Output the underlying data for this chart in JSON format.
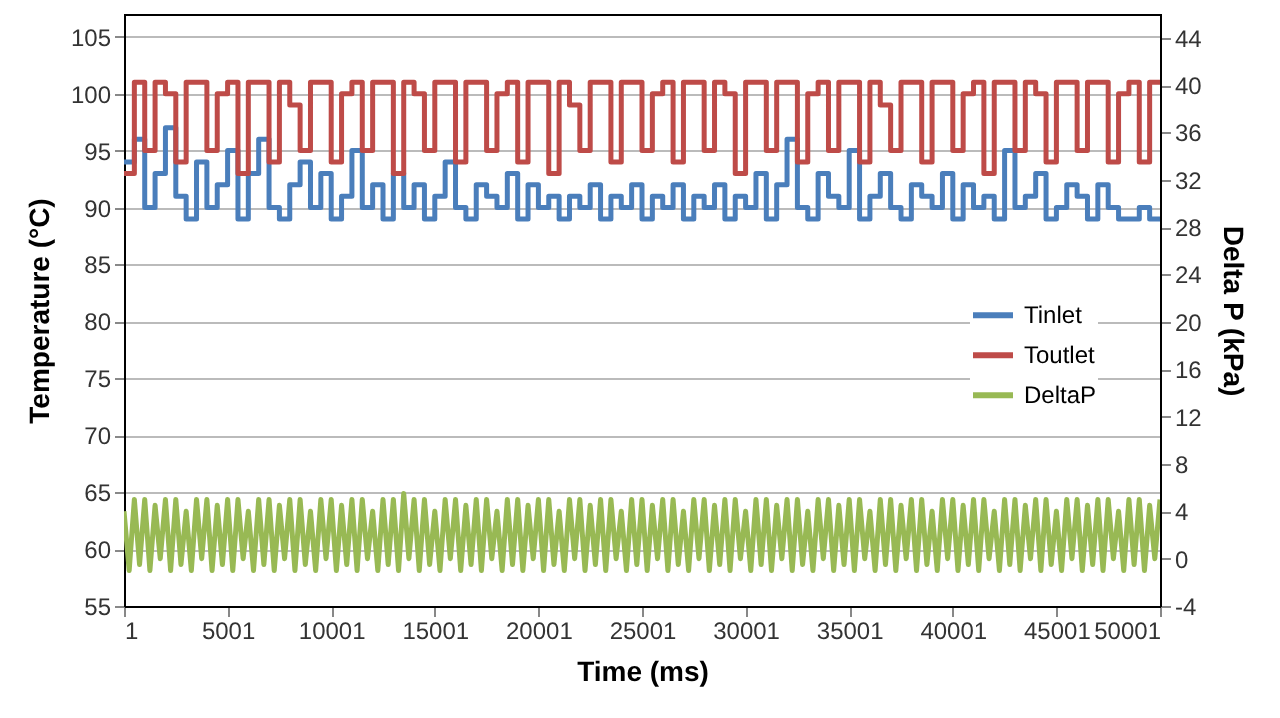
{
  "chart_data": {
    "type": "line",
    "xlabel": "Time (ms)",
    "ylabel": "Temperature (°C)",
    "y2label": "Delta P (kPa)",
    "x": [
      1,
      501,
      1001,
      1501,
      2001,
      2501,
      3001,
      3501,
      4001,
      4501,
      5001,
      5501,
      6001,
      6501,
      7001,
      7501,
      8001,
      8501,
      9001,
      9501,
      10001,
      10501,
      11001,
      11501,
      12001,
      12501,
      13001,
      13501,
      14001,
      14501,
      15001,
      15501,
      16001,
      16501,
      17001,
      17501,
      18001,
      18501,
      19001,
      19501,
      20001,
      20501,
      21001,
      21501,
      22001,
      22501,
      23001,
      23501,
      24001,
      24501,
      25001,
      25501,
      26001,
      26501,
      27001,
      27501,
      28001,
      28501,
      29001,
      29501,
      30001,
      30501,
      31001,
      31501,
      32001,
      32501,
      33001,
      33501,
      34001,
      34501,
      35001,
      35501,
      36001,
      36501,
      37001,
      37501,
      38001,
      38501,
      39001,
      39501,
      40001,
      40501,
      41001,
      41501,
      42001,
      42501,
      43001,
      43501,
      44001,
      44501,
      45001,
      45501,
      46001,
      46501,
      47001,
      47501,
      48001,
      48501,
      49001,
      49501,
      50001
    ],
    "series": [
      {
        "name": "Tinlet",
        "type": "step",
        "color": "#4a7ebb",
        "values": [
          94,
          96,
          90,
          93,
          97,
          91,
          89,
          94,
          90,
          92,
          95,
          89,
          93,
          96,
          90,
          89,
          92,
          94,
          90,
          93,
          89,
          91,
          95,
          90,
          92,
          89,
          93,
          90,
          92,
          89,
          91,
          94,
          90,
          89,
          92,
          91,
          90,
          93,
          89,
          92,
          90,
          91,
          89,
          91,
          90,
          92,
          89,
          91,
          90,
          92,
          89,
          91,
          90,
          92,
          89,
          91,
          90,
          92,
          89,
          91,
          90,
          93,
          89,
          92,
          96,
          90,
          89,
          93,
          91,
          90,
          95,
          89,
          91,
          93,
          90,
          89,
          92,
          91,
          90,
          93,
          89,
          92,
          90,
          91,
          89,
          95,
          90,
          91,
          93,
          89,
          90,
          92,
          91,
          89,
          92,
          90,
          89,
          89,
          90,
          89,
          89
        ]
      },
      {
        "name": "Toutlet",
        "type": "step",
        "color": "#be4b48",
        "values": [
          93,
          101,
          95,
          101,
          100,
          94,
          101,
          101,
          95,
          100,
          101,
          93,
          101,
          101,
          94,
          101,
          99,
          95,
          101,
          101,
          94,
          100,
          101,
          95,
          101,
          101,
          93,
          101,
          100,
          95,
          101,
          101,
          94,
          101,
          101,
          95,
          100,
          101,
          94,
          101,
          101,
          93,
          101,
          99,
          95,
          101,
          101,
          94,
          101,
          101,
          95,
          100,
          101,
          94,
          101,
          101,
          95,
          101,
          100,
          93,
          101,
          101,
          95,
          101,
          101,
          94,
          100,
          101,
          95,
          101,
          101,
          94,
          101,
          99,
          95,
          101,
          101,
          94,
          101,
          101,
          95,
          100,
          101,
          93,
          101,
          101,
          95,
          101,
          100,
          94,
          101,
          101,
          95,
          101,
          101,
          94,
          100,
          101,
          94,
          101,
          101
        ]
      },
      {
        "name": "DeltaP",
        "type": "line",
        "axis": "y2",
        "color": "#98b954",
        "x": [
          1,
          251,
          501,
          751,
          1001,
          1251,
          1501,
          1751,
          2001,
          2251,
          2501,
          2751,
          3001,
          3251,
          3501,
          3751,
          4001,
          4251,
          4501,
          4751,
          5001,
          5251,
          5501,
          5751,
          6001,
          6251,
          6501,
          6751,
          7001,
          7251,
          7501,
          7751,
          8001,
          8251,
          8501,
          8751,
          9001,
          9251,
          9501,
          9751,
          10001,
          10251,
          10501,
          10751,
          11001,
          11251,
          11501,
          11751,
          12001,
          12251,
          12501,
          12751,
          13001,
          13251,
          13501,
          13751,
          14001,
          14251,
          14501,
          14751,
          15001,
          15251,
          15501,
          15751,
          16001,
          16251,
          16501,
          16751,
          17001,
          17251,
          17501,
          17751,
          18001,
          18251,
          18501,
          18751,
          19001,
          19251,
          19501,
          19751,
          20001,
          20251,
          20501,
          20751,
          21001,
          21251,
          21501,
          21751,
          22001,
          22251,
          22501,
          22751,
          23001,
          23251,
          23501,
          23751,
          24001,
          24251,
          24501,
          24751,
          25001,
          25251,
          25501,
          25751,
          26001,
          26251,
          26501,
          26751,
          27001,
          27251,
          27501,
          27751,
          28001,
          28251,
          28501,
          28751,
          29001,
          29251,
          29501,
          29751,
          30001,
          30251,
          30501,
          30751,
          31001,
          31251,
          31501,
          31751,
          32001,
          32251,
          32501,
          32751,
          33001,
          33251,
          33501,
          33751,
          34001,
          34251,
          34501,
          34751,
          35001,
          35251,
          35501,
          35751,
          36001,
          36251,
          36501,
          36751,
          37001,
          37251,
          37501,
          37751,
          38001,
          38251,
          38501,
          38751,
          39001,
          39251,
          39501,
          39751,
          40001,
          40251,
          40501,
          40751,
          41001,
          41251,
          41501,
          41751,
          42001,
          42251,
          42501,
          42751,
          43001,
          43251,
          43501,
          43751,
          44001,
          44251,
          44501,
          44751,
          45001,
          45251,
          45501,
          45751,
          46001,
          46251,
          46501,
          46751,
          47001,
          47251,
          47501,
          47751,
          48001,
          48251,
          48501,
          48751,
          49001,
          49251,
          49501,
          49751,
          50001
        ],
        "values": [
          4,
          -1,
          5,
          -0.5,
          5,
          -1,
          4.5,
          0,
          5,
          -1,
          5,
          -0.5,
          4,
          -1,
          5,
          0,
          5,
          -1,
          4.5,
          -0.5,
          5,
          -1,
          5,
          0,
          4,
          -1,
          5,
          -0.5,
          5,
          -1,
          4.5,
          0,
          5,
          -1,
          5,
          -0.5,
          4,
          -1,
          5,
          0,
          5,
          -1,
          4.5,
          -0.5,
          5,
          -1,
          5,
          0,
          4,
          -1,
          5,
          -0.5,
          5,
          -1,
          5.5,
          0,
          5,
          -1,
          5,
          -0.5,
          4,
          -1,
          5,
          0,
          5,
          -1,
          4.5,
          -0.5,
          5,
          -1,
          5,
          0,
          4,
          -1,
          5,
          -0.5,
          5,
          -1,
          4.5,
          0,
          5,
          -1,
          5,
          -0.5,
          4,
          -1,
          5,
          0,
          5,
          -1,
          4.5,
          -0.5,
          5,
          -1,
          5,
          0,
          4,
          -1,
          5,
          -0.5,
          5,
          -1,
          4.5,
          0,
          5,
          -1,
          5,
          -0.5,
          4,
          -1,
          5,
          0,
          5,
          -1,
          4.5,
          -0.5,
          5,
          -1,
          5,
          0,
          4,
          -1,
          5,
          -0.5,
          5,
          -1,
          4.5,
          0,
          5,
          -1,
          5,
          -0.5,
          4,
          -1,
          5,
          0,
          5,
          -1,
          4.5,
          -0.5,
          5,
          -1,
          5,
          0,
          4,
          -1,
          5,
          -0.5,
          5,
          -1,
          4.5,
          0,
          5,
          -1,
          5,
          -0.5,
          4,
          -1,
          5,
          0,
          5,
          -1,
          4.5,
          -0.5,
          5,
          -1,
          5,
          0,
          4,
          -1,
          5,
          -0.5,
          5,
          -1,
          4.5,
          0,
          5,
          -1,
          5,
          -0.5,
          4,
          -1,
          5,
          0,
          5,
          -1,
          4.5,
          -0.5,
          5,
          -1,
          5,
          0,
          4,
          -1,
          5,
          -0.5,
          5,
          -1,
          4.5,
          0,
          5
        ]
      }
    ],
    "xlim": [
      1,
      50001
    ],
    "xticks": [
      1,
      5001,
      10001,
      15001,
      20001,
      25001,
      30001,
      35001,
      40001,
      45001,
      50001
    ],
    "ylim": [
      55,
      107
    ],
    "yticks": [
      55,
      60,
      65,
      70,
      75,
      80,
      85,
      90,
      95,
      100,
      105
    ],
    "y2lim": [
      -4,
      46
    ],
    "y2ticks": [
      -4,
      0,
      4,
      8,
      12,
      16,
      20,
      24,
      28,
      32,
      36,
      40,
      44
    ],
    "grid": "y",
    "legend": "right"
  }
}
